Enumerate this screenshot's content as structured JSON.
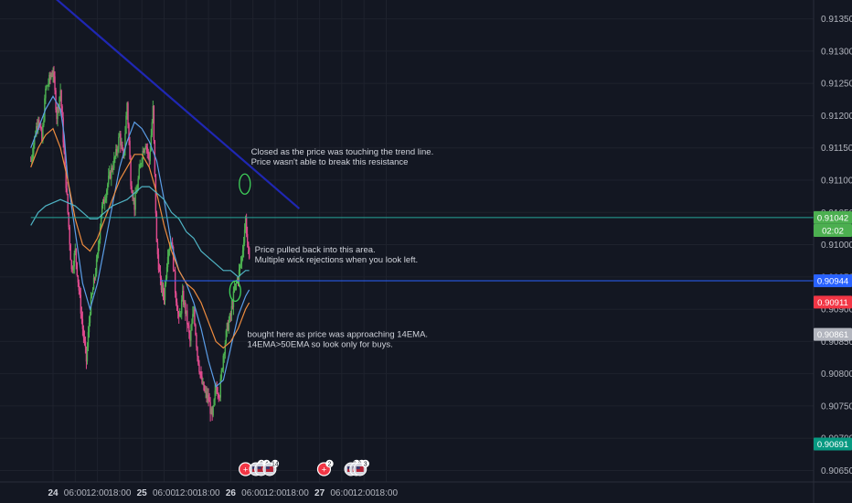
{
  "chart_data": {
    "type": "candlestick",
    "y_range": [
      0.90645,
      0.91375
    ],
    "y_ticks": [
      "0.90650",
      "0.90700",
      "0.90750",
      "0.90800",
      "0.90850",
      "0.90900",
      "0.90950",
      "0.91000",
      "0.91050",
      "0.91100",
      "0.91150",
      "0.91200",
      "0.91250",
      "0.91300",
      "0.91350"
    ],
    "x_labels": [
      {
        "label": "24",
        "day": true,
        "t": 0
      },
      {
        "label": "06:00",
        "day": false,
        "t": 6
      },
      {
        "label": "12:00",
        "day": false,
        "t": 12
      },
      {
        "label": "18:00",
        "day": false,
        "t": 18
      },
      {
        "label": "25",
        "day": true,
        "t": 24
      },
      {
        "label": "06:00",
        "day": false,
        "t": 30
      },
      {
        "label": "12:00",
        "day": false,
        "t": 36
      },
      {
        "label": "18:00",
        "day": false,
        "t": 42
      },
      {
        "label": "26",
        "day": true,
        "t": 48
      },
      {
        "label": "06:00",
        "day": false,
        "t": 54
      },
      {
        "label": "12:00",
        "day": false,
        "t": 60
      },
      {
        "label": "18:00",
        "day": false,
        "t": 66
      },
      {
        "label": "27",
        "day": true,
        "t": 72
      },
      {
        "label": "06:00",
        "day": false,
        "t": 78
      },
      {
        "label": "12:00",
        "day": false,
        "t": 84
      },
      {
        "label": "18:00",
        "day": false,
        "t": 90
      }
    ],
    "price_labels": [
      {
        "text": "0.91042",
        "price": 0.91042,
        "color": "#4caf50",
        "text_color": "#131722"
      },
      {
        "text": "02:02",
        "price": 0.91022,
        "color": "#4caf50",
        "text_color": "#131722"
      },
      {
        "text": "0.90944",
        "price": 0.90944,
        "color": "#2962ff",
        "text_color": "#ffffff"
      },
      {
        "text": "0.90911",
        "price": 0.90911,
        "color": "#f23645",
        "text_color": "#ffffff"
      },
      {
        "text": "0.90861",
        "price": 0.90861,
        "color": "#b2b5be",
        "text_color": "#131722"
      },
      {
        "text": "0.90691",
        "price": 0.90691,
        "color": "#089981",
        "text_color": "#ffffff"
      }
    ],
    "horizontal_lines": [
      {
        "price": 0.91042,
        "from_t": -6,
        "color": "#26a69a"
      },
      {
        "price": 0.90944,
        "from_t": 29,
        "color": "#2962ff"
      }
    ],
    "trend_line": {
      "from": {
        "t": -1,
        "price": 0.9139
      },
      "to": {
        "t": 66.5,
        "price": 0.91056
      },
      "color": "#1f27b3"
    },
    "series": [
      {
        "name": "",
        "color": "#5b9ee8",
        "points": [
          [
            -6,
            0.9115
          ],
          [
            -4,
            0.9118
          ],
          [
            -2,
            0.9121
          ],
          [
            0,
            0.9123
          ],
          [
            2,
            0.9121
          ],
          [
            3,
            0.9117
          ],
          [
            4,
            0.911
          ],
          [
            6,
            0.9102
          ],
          [
            8,
            0.9094
          ],
          [
            10,
            0.909
          ],
          [
            12,
            0.9094
          ],
          [
            14,
            0.91
          ],
          [
            16,
            0.9106
          ],
          [
            18,
            0.9112
          ],
          [
            20,
            0.9116
          ],
          [
            22,
            0.9119
          ],
          [
            24,
            0.9118
          ],
          [
            26,
            0.9116
          ],
          [
            28,
            0.9113
          ],
          [
            30,
            0.9107
          ],
          [
            32,
            0.91
          ],
          [
            34,
            0.9096
          ],
          [
            36,
            0.9094
          ],
          [
            38,
            0.9091
          ],
          [
            40,
            0.9087
          ],
          [
            42,
            0.9082
          ],
          [
            44,
            0.9078
          ],
          [
            46,
            0.9079
          ],
          [
            48,
            0.9084
          ],
          [
            50,
            0.9089
          ],
          [
            52,
            0.9092
          ],
          [
            53,
            0.9093
          ]
        ]
      },
      {
        "name": "",
        "color": "#ef8c3f",
        "points": [
          [
            -6,
            0.9112
          ],
          [
            -4,
            0.9115
          ],
          [
            -2,
            0.9117
          ],
          [
            0,
            0.9118
          ],
          [
            2,
            0.9115
          ],
          [
            4,
            0.911
          ],
          [
            6,
            0.9104
          ],
          [
            8,
            0.91
          ],
          [
            10,
            0.9099
          ],
          [
            12,
            0.9101
          ],
          [
            14,
            0.9104
          ],
          [
            16,
            0.9107
          ],
          [
            18,
            0.911
          ],
          [
            20,
            0.9112
          ],
          [
            22,
            0.9114
          ],
          [
            24,
            0.9114
          ],
          [
            26,
            0.9112
          ],
          [
            28,
            0.9108
          ],
          [
            30,
            0.9103
          ],
          [
            32,
            0.9099
          ],
          [
            34,
            0.9096
          ],
          [
            36,
            0.9094
          ],
          [
            38,
            0.9093
          ],
          [
            40,
            0.9091
          ],
          [
            42,
            0.9088
          ],
          [
            44,
            0.9085
          ],
          [
            46,
            0.9084
          ],
          [
            48,
            0.9085
          ],
          [
            50,
            0.9087
          ],
          [
            52,
            0.909
          ],
          [
            53,
            0.9091
          ]
        ]
      },
      {
        "name": "",
        "color": "#4fb3c4",
        "points": [
          [
            -6,
            0.9103
          ],
          [
            -4,
            0.9105
          ],
          [
            -2,
            0.9106
          ],
          [
            2,
            0.9107
          ],
          [
            6,
            0.9106
          ],
          [
            10,
            0.9104
          ],
          [
            12,
            0.9104
          ],
          [
            16,
            0.9106
          ],
          [
            20,
            0.9107
          ],
          [
            24,
            0.9109
          ],
          [
            26,
            0.9109
          ],
          [
            28,
            0.9108
          ],
          [
            30,
            0.9107
          ],
          [
            32,
            0.9105
          ],
          [
            34,
            0.9104
          ],
          [
            36,
            0.9102
          ],
          [
            38,
            0.9101
          ],
          [
            40,
            0.9099
          ],
          [
            42,
            0.9098
          ],
          [
            44,
            0.9097
          ],
          [
            46,
            0.9096
          ],
          [
            48,
            0.9096
          ],
          [
            50,
            0.9095
          ],
          [
            52,
            0.9096
          ],
          [
            53,
            0.9096
          ]
        ]
      }
    ],
    "candle_path": [
      [
        -6,
        0.9113
      ],
      [
        -4,
        0.912
      ],
      [
        -3,
        0.9116
      ],
      [
        -2,
        0.9124
      ],
      [
        0,
        0.9127
      ],
      [
        1,
        0.912
      ],
      [
        2,
        0.9124
      ],
      [
        3,
        0.9114
      ],
      [
        4,
        0.9105
      ],
      [
        5,
        0.9096
      ],
      [
        6,
        0.9099
      ],
      [
        7,
        0.9093
      ],
      [
        8,
        0.9087
      ],
      [
        9,
        0.9082
      ],
      [
        10,
        0.909
      ],
      [
        12,
        0.9098
      ],
      [
        13,
        0.9105
      ],
      [
        15,
        0.911
      ],
      [
        16,
        0.9112
      ],
      [
        17,
        0.9114
      ],
      [
        18,
        0.9117
      ],
      [
        19,
        0.9113
      ],
      [
        20,
        0.9122
      ],
      [
        21,
        0.911
      ],
      [
        22,
        0.9106
      ],
      [
        23,
        0.911
      ],
      [
        24,
        0.9114
      ],
      [
        25,
        0.9116
      ],
      [
        26,
        0.9113
      ],
      [
        27,
        0.9121
      ],
      [
        28,
        0.91
      ],
      [
        29,
        0.9094
      ],
      [
        30,
        0.9092
      ],
      [
        31,
        0.9099
      ],
      [
        32,
        0.9101
      ],
      [
        33,
        0.9093
      ],
      [
        34,
        0.9088
      ],
      [
        35,
        0.9092
      ],
      [
        36,
        0.9089
      ],
      [
        37,
        0.9085
      ],
      [
        38,
        0.909
      ],
      [
        39,
        0.9083
      ],
      [
        40,
        0.9079
      ],
      [
        41,
        0.9077
      ],
      [
        42,
        0.9076
      ],
      [
        43,
        0.9073
      ],
      [
        44,
        0.9078
      ],
      [
        45,
        0.9077
      ],
      [
        46,
        0.9083
      ],
      [
        47,
        0.9087
      ],
      [
        48,
        0.9089
      ],
      [
        49,
        0.9093
      ],
      [
        50,
        0.9095
      ],
      [
        51,
        0.9098
      ],
      [
        52,
        0.9104
      ],
      [
        53,
        0.9097
      ]
    ],
    "annotations": [
      {
        "lines": [
          "Closed as the price was touching the trend line.",
          "Price wasn't able to break this resistance"
        ],
        "t": 52,
        "price": 0.9114
      },
      {
        "lines": [
          "Price pulled back into this area.",
          "Multiple wick rejections when you look left."
        ],
        "t": 53,
        "price": 0.90988
      },
      {
        "lines": [
          "bought here as price was approaching 14EMA.",
          "14EMA>50EMA so look only for buys."
        ],
        "t": 51,
        "price": 0.90857
      }
    ],
    "circles": [
      {
        "t": 51.8,
        "price": 0.91094
      },
      {
        "t": 49.2,
        "price": 0.90928
      }
    ],
    "events": [
      {
        "t": 52,
        "label": "+",
        "count": "",
        "type": "red"
      },
      {
        "t": 54.8,
        "label": "",
        "count": "6",
        "type": "flag"
      },
      {
        "t": 56.2,
        "label": "",
        "count": "4",
        "type": "flag"
      },
      {
        "t": 58.5,
        "label": "",
        "count": "14",
        "type": "flag"
      },
      {
        "t": 73.2,
        "label": "+",
        "count": "2",
        "type": "red"
      },
      {
        "t": 80.5,
        "label": "",
        "count": "34",
        "type": "flag"
      },
      {
        "t": 81.9,
        "label": "",
        "count": "23",
        "type": "flag"
      },
      {
        "t": 82.9,
        "label": "",
        "count": "3",
        "type": "flag"
      }
    ]
  }
}
